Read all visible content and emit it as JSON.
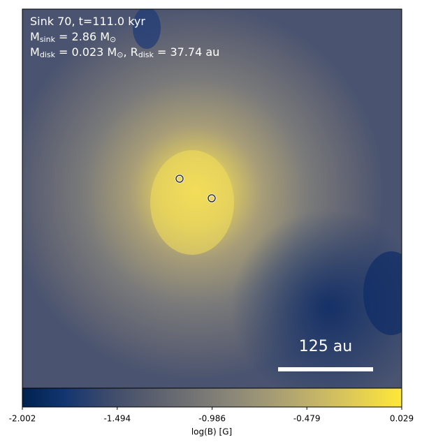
{
  "chart_data": {
    "type": "heatmap",
    "annotation_lines": [
      [
        {
          "text": "Sink 70, t=111.0 kyr"
        }
      ],
      [
        {
          "text": "M"
        },
        {
          "text": "sink",
          "sub": true
        },
        {
          "text": " = 2.86 M"
        },
        {
          "text": "⊙",
          "sub": true
        }
      ],
      [
        {
          "text": "M"
        },
        {
          "text": "disk",
          "sub": true
        },
        {
          "text": " = 0.023 M"
        },
        {
          "text": "⊙",
          "sub": true
        },
        {
          "text": ", R"
        },
        {
          "text": "disk",
          "sub": true
        },
        {
          "text": " = 37.74 au"
        }
      ]
    ],
    "scale_bar_label": "125 au",
    "colorbar_label": "log(B) [G]",
    "clim": [
      -2.002,
      0.029
    ],
    "cticks": [
      -2.002,
      -1.494,
      -0.986,
      -0.479,
      0.029
    ]
  }
}
